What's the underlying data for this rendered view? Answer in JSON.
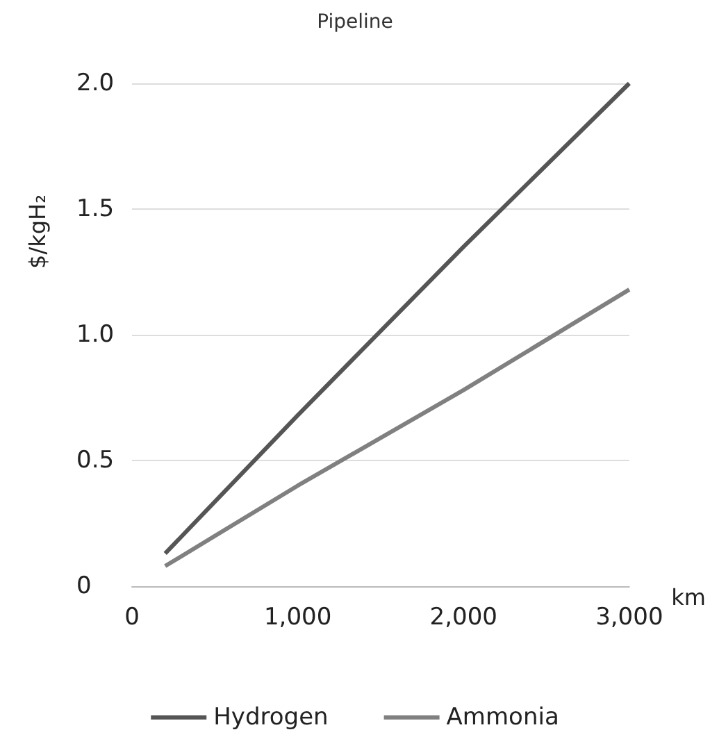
{
  "chart_data": {
    "type": "line",
    "title": "Pipeline",
    "xlabel": "km",
    "ylabel": "$/kgH₂",
    "xlim": [
      0,
      3000
    ],
    "xticks": [
      0,
      {
        "value": 1000,
        "label": "1,000"
      },
      {
        "value": 2000,
        "label": "2,000"
      },
      {
        "value": 3000,
        "label": "3,000"
      }
    ],
    "ylim": [
      0,
      2
    ],
    "yticks": [
      0,
      0.5,
      {
        "value": 1,
        "label": "1.0"
      },
      1.5,
      {
        "value": 2,
        "label": "2.0"
      }
    ],
    "grid": "y",
    "legend": "bottom",
    "marker": "none",
    "line_style": "solid",
    "series": [
      {
        "name": "Hydrogen",
        "color": "#555555",
        "x": [
          200,
          1000,
          2000,
          3000
        ],
        "values": [
          0.13,
          0.68,
          1.35,
          2.0
        ]
      },
      {
        "name": "Ammonia",
        "color": "#808080",
        "x": [
          200,
          1000,
          2000,
          3000
        ],
        "values": [
          0.08,
          0.4,
          0.78,
          1.18
        ]
      }
    ]
  }
}
